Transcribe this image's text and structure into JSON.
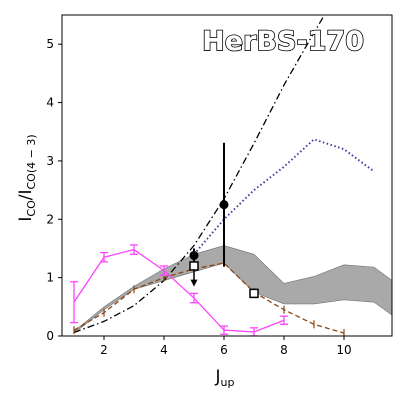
{
  "chart_data": {
    "type": "line",
    "title": "HerBS-170",
    "xlabel_main": "J",
    "xlabel_sub": "up",
    "ylabel_main": "I",
    "ylabel_sub1": "CO",
    "ylabel_mid": "/I",
    "ylabel_sub2": "CO(4 − 3)",
    "xlim": [
      0.6,
      11.6
    ],
    "ylim": [
      0,
      5.5
    ],
    "xticks": [
      2,
      4,
      6,
      8,
      10
    ],
    "yticks": [
      0,
      1,
      2,
      3,
      4,
      5
    ],
    "grid": false,
    "shaded_band": {
      "color": "#a9a9a9",
      "x": [
        1,
        2,
        3,
        4,
        5,
        6,
        7,
        8,
        9,
        10,
        11,
        11.6
      ],
      "lower": [
        0.05,
        0.45,
        0.8,
        0.95,
        1.1,
        1.25,
        0.75,
        0.55,
        0.55,
        0.62,
        0.58,
        0.36
      ],
      "upper": [
        0.08,
        0.5,
        0.85,
        1.15,
        1.4,
        1.55,
        1.4,
        0.9,
        1.02,
        1.22,
        1.18,
        0.95
      ]
    },
    "series": [
      {
        "style": "dashdot",
        "color": "#000000",
        "x": [
          1,
          2,
          3,
          4,
          5,
          6,
          7,
          8,
          9,
          9.35
        ],
        "y": [
          0.06,
          0.25,
          0.52,
          0.95,
          1.55,
          2.35,
          3.3,
          4.3,
          5.2,
          5.5
        ]
      },
      {
        "style": "dotted",
        "color": "#3a3a9a",
        "x": [
          5,
          6,
          7,
          8,
          9,
          10,
          11
        ],
        "y": [
          1.4,
          2.0,
          2.5,
          2.9,
          3.37,
          3.2,
          2.82
        ]
      },
      {
        "style": "dashed",
        "color": "#8b4513",
        "x": [
          1,
          2,
          3,
          4,
          5,
          6,
          7,
          8,
          9,
          10
        ],
        "y": [
          0.1,
          0.4,
          0.8,
          1.0,
          1.15,
          1.25,
          0.75,
          0.45,
          0.2,
          0.05
        ],
        "markers": "tick"
      },
      {
        "style": "solid",
        "color": "#ff44ff",
        "x": [
          1,
          2,
          3,
          4,
          5,
          6,
          7,
          8
        ],
        "y": [
          0.58,
          1.35,
          1.48,
          1.12,
          0.65,
          0.1,
          0.07,
          0.27
        ],
        "yerr": [
          0.35,
          0.08,
          0.08,
          0.08,
          0.08,
          0.07,
          0.07,
          0.07
        ],
        "markers": "hbar"
      }
    ],
    "points_filled": [
      {
        "x": 5,
        "y": 1.38,
        "yerr_low": 0.12,
        "yerr_high": 0.12
      },
      {
        "x": 6,
        "y": 2.25,
        "yerr_low": 1.06,
        "yerr_high": 1.06
      }
    ],
    "points_open": [
      {
        "x": 5,
        "y": 1.2,
        "upper_limit": true
      },
      {
        "x": 7,
        "y": 0.73,
        "yerr_low": 0.08,
        "yerr_high": 0.08
      }
    ]
  }
}
